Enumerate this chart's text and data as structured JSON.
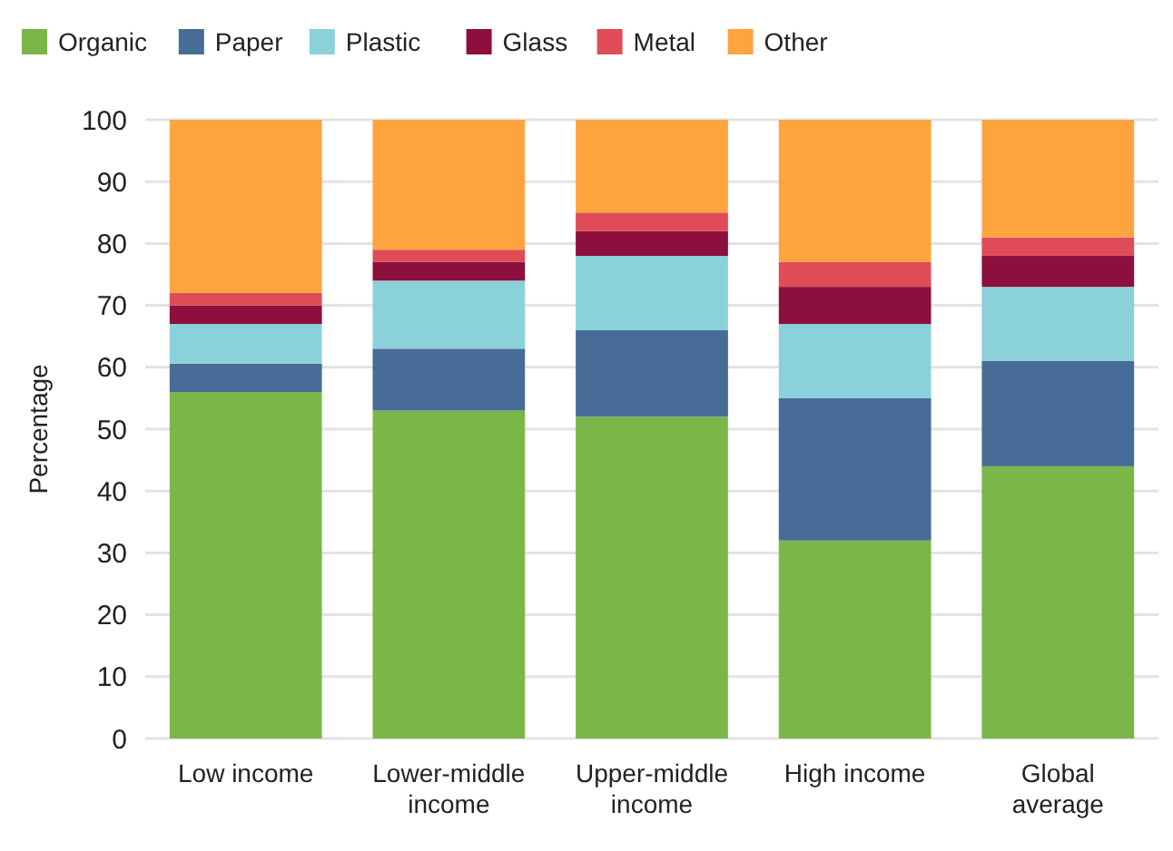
{
  "chart_data": {
    "type": "bar",
    "stacked": true,
    "ylabel": "Percentage",
    "categories": [
      "Low income",
      "Lower-middle income",
      "Upper-middle income",
      "High income",
      "Global average"
    ],
    "series": [
      {
        "name": "Organic",
        "color": "#7ab648",
        "values": [
          56,
          53,
          52,
          32,
          44
        ]
      },
      {
        "name": "Paper",
        "color": "#476c97",
        "values": [
          4.6,
          10,
          14,
          23,
          17
        ]
      },
      {
        "name": "Plastic",
        "color": "#8ad1da",
        "values": [
          6.4,
          11,
          12,
          12,
          12
        ]
      },
      {
        "name": "Glass",
        "color": "#8c0f3e",
        "values": [
          3,
          3,
          4,
          6,
          5
        ]
      },
      {
        "name": "Metal",
        "color": "#e04b58",
        "values": [
          2,
          2,
          3,
          4,
          3
        ]
      },
      {
        "name": "Other",
        "color": "#fda43f",
        "values": [
          28,
          21,
          15,
          23,
          19
        ]
      }
    ],
    "ylim": [
      0,
      100
    ],
    "yticks": [
      0,
      10,
      20,
      30,
      40,
      50,
      60,
      70,
      80,
      90,
      100
    ],
    "grid": "y",
    "legend": "top left"
  }
}
